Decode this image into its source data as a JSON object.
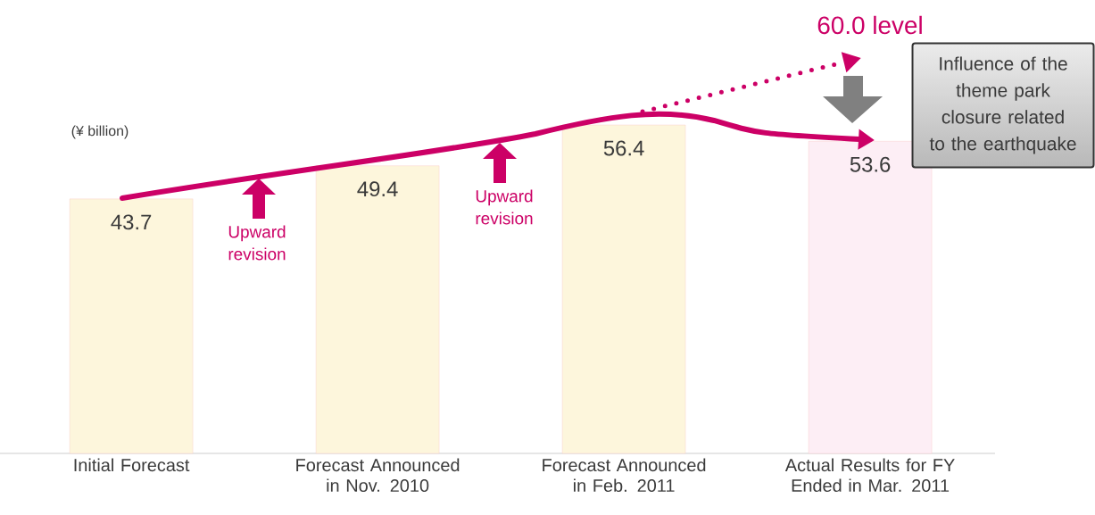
{
  "chart_data": {
    "type": "bar",
    "categories": [
      "Initial Forecast",
      "Forecast Announced in Nov. 2010",
      "Forecast Announced in Feb. 2011",
      "Actual Results for FY Ended in Mar. 2011"
    ],
    "values": [
      43.7,
      49.4,
      56.4,
      53.6
    ],
    "colors": [
      "#fdf6dc",
      "#fdf6dc",
      "#fdf6dc",
      "#fdeef5"
    ],
    "tick_labels": "x",
    "data_labels": true,
    "annotations": [
      "(¥ billion)",
      "Upward revision",
      "Upward revision",
      "60.0 level",
      "Influence of the theme park closure related to the earthquake"
    ]
  }
}
